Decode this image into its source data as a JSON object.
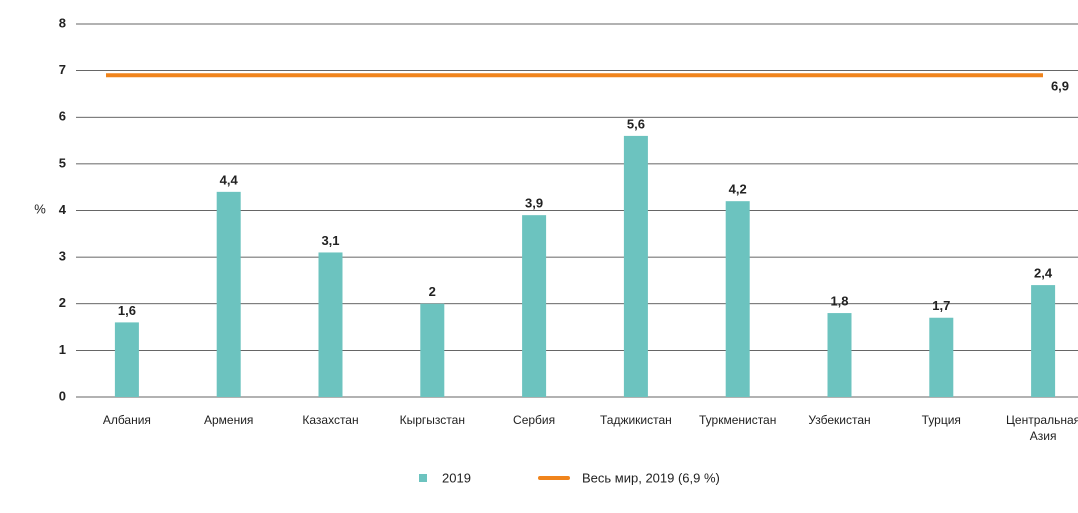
{
  "chart_data": {
    "type": "bar",
    "y_axis_label": "%",
    "categories": [
      "Албания",
      "Армения",
      "Казахстан",
      "Кыргызстан",
      "Сербия",
      "Таджикистан",
      "Туркменистан",
      "Узбекистан",
      "Турция",
      "Центральная Азия"
    ],
    "series": [
      {
        "name": "2019",
        "color": "#6cc3bf",
        "values": [
          1.6,
          4.4,
          3.1,
          2,
          3.9,
          5.6,
          4.2,
          1.8,
          1.7,
          2.4
        ],
        "value_labels": [
          "1,6",
          "4,4",
          "3,1",
          "2",
          "3,9",
          "5,6",
          "4,2",
          "1,8",
          "1,7",
          "2,4"
        ]
      }
    ],
    "reference_line": {
      "name": "Весь мир, 2019 (6,9 %)",
      "value": 6.9,
      "value_label": "6,9",
      "color": "#f0841c"
    },
    "ylim": [
      0,
      8
    ],
    "yticks": [
      0,
      1,
      2,
      3,
      4,
      5,
      6,
      7,
      8
    ],
    "grid": true
  }
}
